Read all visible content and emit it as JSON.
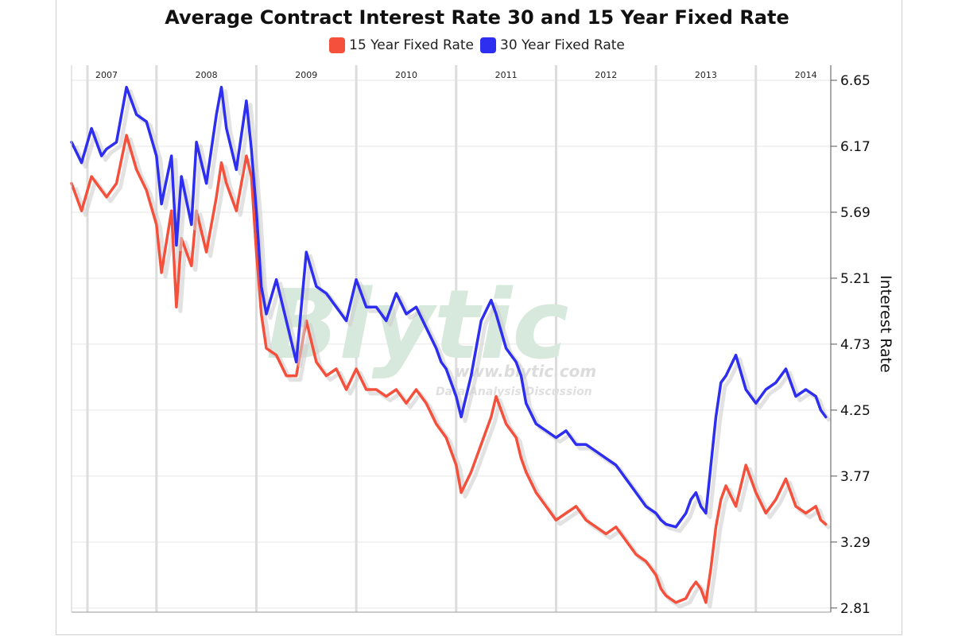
{
  "chart_data": {
    "type": "line",
    "title": "Average Contract Interest Rate 30 and 15 Year Fixed Rate",
    "ylabel": "Interest Rate",
    "xlabel": "",
    "xlim": [
      2006.65,
      2014.25
    ],
    "ylim": [
      2.78,
      6.76
    ],
    "y_axis_position": "right",
    "y_ticks": [
      "6.65",
      "6.17",
      "5.69",
      "5.21",
      "4.73",
      "4.25",
      "3.77",
      "3.29",
      "2.81"
    ],
    "x_ticks": [
      "2007",
      "2008",
      "2009",
      "2010",
      "2011",
      "2012",
      "2013",
      "2014"
    ],
    "legend_position": "top-center",
    "grid": true,
    "watermark": {
      "main": "Blytic",
      "url": "www.blytic.com",
      "tagline": "Data Analysis Discussion"
    },
    "series": [
      {
        "name": "15 Year Fixed Rate",
        "color": "#f4503c",
        "x": [
          2006.65,
          2006.75,
          2006.85,
          2006.95,
          2007.0,
          2007.1,
          2007.2,
          2007.3,
          2007.4,
          2007.5,
          2007.55,
          2007.65,
          2007.7,
          2007.75,
          2007.85,
          2007.9,
          2008.0,
          2008.1,
          2008.15,
          2008.2,
          2008.3,
          2008.4,
          2008.45,
          2008.5,
          2008.55,
          2008.6,
          2008.7,
          2008.8,
          2008.9,
          2009.0,
          2009.1,
          2009.2,
          2009.3,
          2009.4,
          2009.5,
          2009.6,
          2009.7,
          2009.8,
          2009.9,
          2010.0,
          2010.1,
          2010.2,
          2010.3,
          2010.35,
          2010.4,
          2010.5,
          2010.55,
          2010.65,
          2010.75,
          2010.85,
          2010.9,
          2011.0,
          2011.1,
          2011.15,
          2011.2,
          2011.3,
          2011.4,
          2011.5,
          2011.6,
          2011.7,
          2011.8,
          2011.9,
          2012.0,
          2012.1,
          2012.2,
          2012.3,
          2012.4,
          2012.5,
          2012.55,
          2012.6,
          2012.7,
          2012.8,
          2012.85,
          2012.9,
          2012.95,
          2013.0,
          2013.05,
          2013.1,
          2013.15,
          2013.2,
          2013.3,
          2013.4,
          2013.5,
          2013.6,
          2013.7,
          2013.8,
          2013.9,
          2014.0,
          2014.1,
          2014.15,
          2014.2
        ],
        "values": [
          5.9,
          5.7,
          5.95,
          5.85,
          5.8,
          5.9,
          6.25,
          6.0,
          5.85,
          5.6,
          5.25,
          5.7,
          5.0,
          5.5,
          5.3,
          5.7,
          5.4,
          5.8,
          6.05,
          5.9,
          5.7,
          6.1,
          5.95,
          5.4,
          4.95,
          4.7,
          4.65,
          4.5,
          4.5,
          4.9,
          4.6,
          4.5,
          4.55,
          4.4,
          4.55,
          4.4,
          4.4,
          4.35,
          4.4,
          4.3,
          4.4,
          4.3,
          4.15,
          4.1,
          4.05,
          3.85,
          3.65,
          3.8,
          4.0,
          4.2,
          4.35,
          4.15,
          4.05,
          3.9,
          3.8,
          3.65,
          3.55,
          3.45,
          3.5,
          3.55,
          3.45,
          3.4,
          3.35,
          3.4,
          3.3,
          3.2,
          3.15,
          3.05,
          2.95,
          2.9,
          2.85,
          2.88,
          2.95,
          3.0,
          2.95,
          2.85,
          3.1,
          3.4,
          3.6,
          3.7,
          3.55,
          3.85,
          3.65,
          3.5,
          3.6,
          3.75,
          3.55,
          3.5,
          3.55,
          3.45,
          3.42
        ]
      },
      {
        "name": "30 Year Fixed Rate",
        "color": "#2e2ef0",
        "x": [
          2006.65,
          2006.75,
          2006.85,
          2006.95,
          2007.0,
          2007.1,
          2007.2,
          2007.3,
          2007.4,
          2007.5,
          2007.55,
          2007.65,
          2007.7,
          2007.75,
          2007.85,
          2007.9,
          2008.0,
          2008.1,
          2008.15,
          2008.2,
          2008.3,
          2008.4,
          2008.45,
          2008.5,
          2008.55,
          2008.6,
          2008.7,
          2008.8,
          2008.9,
          2009.0,
          2009.1,
          2009.2,
          2009.3,
          2009.4,
          2009.5,
          2009.6,
          2009.7,
          2009.8,
          2009.9,
          2010.0,
          2010.1,
          2010.2,
          2010.3,
          2010.35,
          2010.4,
          2010.5,
          2010.55,
          2010.65,
          2010.75,
          2010.85,
          2010.9,
          2011.0,
          2011.1,
          2011.15,
          2011.2,
          2011.3,
          2011.4,
          2011.5,
          2011.6,
          2011.7,
          2011.8,
          2011.9,
          2012.0,
          2012.1,
          2012.2,
          2012.3,
          2012.4,
          2012.5,
          2012.55,
          2012.6,
          2012.7,
          2012.8,
          2012.85,
          2012.9,
          2012.95,
          2013.0,
          2013.05,
          2013.1,
          2013.15,
          2013.2,
          2013.3,
          2013.4,
          2013.5,
          2013.6,
          2013.7,
          2013.8,
          2013.9,
          2014.0,
          2014.1,
          2014.15,
          2014.2
        ],
        "values": [
          6.2,
          6.05,
          6.3,
          6.1,
          6.15,
          6.2,
          6.6,
          6.4,
          6.35,
          6.1,
          5.75,
          6.1,
          5.45,
          5.95,
          5.6,
          6.2,
          5.9,
          6.4,
          6.6,
          6.3,
          6.0,
          6.5,
          6.15,
          5.7,
          5.15,
          4.95,
          5.2,
          4.9,
          4.6,
          5.4,
          5.15,
          5.1,
          5.0,
          4.9,
          5.2,
          5.0,
          5.0,
          4.9,
          5.1,
          4.95,
          5.0,
          4.85,
          4.7,
          4.6,
          4.55,
          4.35,
          4.2,
          4.5,
          4.9,
          5.05,
          4.95,
          4.7,
          4.6,
          4.5,
          4.3,
          4.15,
          4.1,
          4.05,
          4.1,
          4.0,
          4.0,
          3.95,
          3.9,
          3.85,
          3.75,
          3.65,
          3.55,
          3.5,
          3.45,
          3.42,
          3.4,
          3.5,
          3.6,
          3.65,
          3.55,
          3.5,
          3.85,
          4.2,
          4.45,
          4.5,
          4.65,
          4.4,
          4.3,
          4.4,
          4.45,
          4.55,
          4.35,
          4.4,
          4.35,
          4.25,
          4.2
        ]
      }
    ]
  }
}
